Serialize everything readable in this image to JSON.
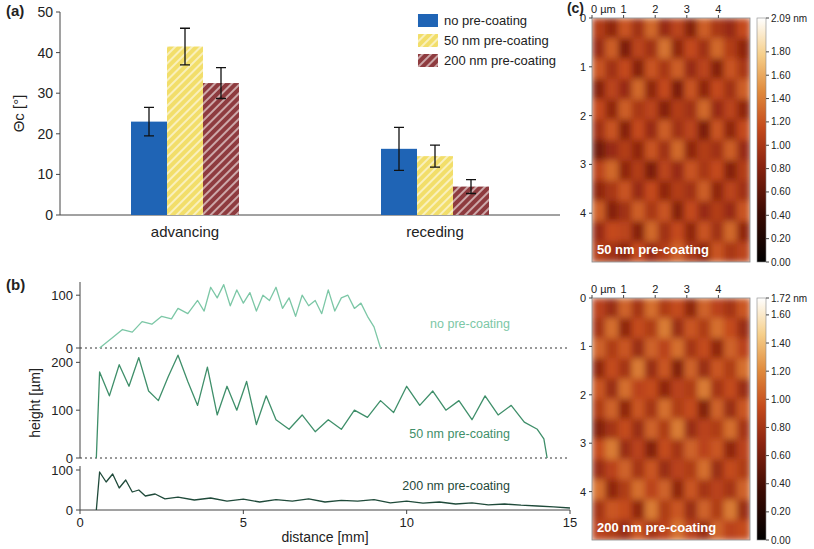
{
  "chart_data": [
    {
      "type": "bar",
      "title": "(a)",
      "y_label": "Θc [°]",
      "categories": [
        "advancing",
        "receding"
      ],
      "series": [
        {
          "name": "no pre-coating",
          "color": "#1f64b5",
          "values": [
            23,
            16.3
          ],
          "errors": [
            3.5,
            5.3
          ]
        },
        {
          "name": "50 nm pre-coating",
          "color": "#f2de6a",
          "values": [
            41.5,
            14.5
          ],
          "errors": [
            4.5,
            2.7
          ]
        },
        {
          "name": "200 nm pre-coating",
          "color": "#8e3b3f",
          "values": [
            32.5,
            7
          ],
          "errors": [
            3.8,
            1.7
          ]
        }
      ],
      "ylim": [
        0,
        50
      ],
      "yticks": [
        0,
        10,
        20,
        30,
        40,
        50
      ],
      "legend": "upper right",
      "grid": false
    },
    {
      "type": "line",
      "title": "(b)",
      "x": [
        0.6,
        0.8,
        1.0,
        1.3,
        1.6,
        1.9,
        2.2,
        2.5,
        2.8,
        3.0,
        3.3,
        3.6,
        3.8,
        4.0,
        4.2,
        4.4,
        4.6,
        4.8,
        5.0,
        5.2,
        5.4,
        5.6,
        5.8,
        6.0,
        6.2,
        6.4,
        6.6,
        6.8,
        7.0,
        7.2,
        7.4,
        7.6,
        7.8,
        8.0,
        8.2,
        8.4,
        8.6,
        8.8,
        9.0,
        9.2
      ],
      "series": [
        {
          "name": "no pre-coating",
          "color": "#7cc7a6",
          "values": [
            0,
            10,
            20,
            35,
            30,
            50,
            45,
            60,
            55,
            75,
            65,
            90,
            70,
            115,
            95,
            120,
            80,
            110,
            85,
            105,
            70,
            100,
            90,
            115,
            75,
            95,
            60,
            100,
            80,
            90,
            65,
            110,
            70,
            95,
            100,
            75,
            85,
            60,
            40,
            0
          ]
        }
      ],
      "xlim": [
        0,
        15
      ],
      "ylim": [
        0,
        125
      ],
      "yticks": [
        0,
        100
      ],
      "tick_labels": "y",
      "legend": "lower right",
      "grid": false
    },
    {
      "type": "line",
      "y_label": "height [µm]",
      "x": [
        0.5,
        0.6,
        0.9,
        1.2,
        1.5,
        1.8,
        2.1,
        2.4,
        2.7,
        3.0,
        3.3,
        3.6,
        3.9,
        4.2,
        4.5,
        4.8,
        5.1,
        5.4,
        5.7,
        6.0,
        6.4,
        6.8,
        7.2,
        7.6,
        8.0,
        8.4,
        8.8,
        9.2,
        9.6,
        10.0,
        10.4,
        10.8,
        11.2,
        11.6,
        12.0,
        12.4,
        12.8,
        13.2,
        13.6,
        14.0,
        14.2,
        14.3
      ],
      "series": [
        {
          "name": "50 nm pre-coating",
          "color": "#3f8f6a",
          "values": [
            0,
            180,
            130,
            195,
            150,
            210,
            140,
            120,
            170,
            215,
            160,
            110,
            190,
            90,
            150,
            100,
            160,
            70,
            130,
            80,
            60,
            90,
            55,
            80,
            60,
            100,
            85,
            120,
            95,
            150,
            110,
            140,
            100,
            120,
            80,
            130,
            90,
            110,
            75,
            60,
            40,
            0
          ]
        }
      ],
      "xlim": [
        0,
        15
      ],
      "ylim": [
        0,
        230
      ],
      "yticks": [
        0,
        100,
        200
      ],
      "tick_labels": "y",
      "legend": "lower right",
      "grid": false
    },
    {
      "type": "line",
      "x_label": "distance [mm]",
      "x": [
        0.5,
        0.6,
        0.8,
        1.0,
        1.2,
        1.4,
        1.6,
        1.8,
        2.0,
        2.3,
        2.6,
        3.0,
        3.5,
        4.0,
        4.5,
        5.0,
        5.5,
        6.0,
        6.5,
        7.0,
        7.5,
        8.0,
        8.5,
        9.0,
        9.5,
        10.0,
        10.5,
        11.0,
        11.5,
        12.0,
        12.5,
        13.0,
        13.5,
        14.0,
        14.5,
        15.0
      ],
      "series": [
        {
          "name": "200 nm pre-coating",
          "color": "#1f4a3a",
          "values": [
            0,
            95,
            70,
            90,
            55,
            75,
            45,
            50,
            35,
            40,
            28,
            32,
            25,
            30,
            22,
            27,
            20,
            26,
            22,
            28,
            20,
            24,
            22,
            26,
            18,
            22,
            17,
            20,
            15,
            18,
            13,
            15,
            12,
            10,
            8,
            5
          ]
        }
      ],
      "xlim": [
        0,
        15
      ],
      "ylim": [
        0,
        110
      ],
      "xticks": [
        0,
        5,
        10,
        15
      ],
      "yticks": [
        0,
        100
      ],
      "legend": "lower right",
      "grid": false
    },
    {
      "type": "heatmap",
      "title": "(c)",
      "annotation": "50 nm pre-coating",
      "xlim": [
        0,
        5
      ],
      "ylim": [
        0,
        5
      ],
      "xticks": [
        {
          "value": 0,
          "label": "0 µm"
        },
        1,
        2,
        3,
        4
      ],
      "yticks": [
        0,
        1,
        2,
        3,
        4
      ],
      "cells": [
        [
          1.05,
          0.85,
          1.2,
          0.95,
          1.3,
          0.9,
          1.1,
          0.8,
          1.25,
          1.0,
          0.9,
          1.15
        ],
        [
          0.9,
          1.25,
          0.75,
          1.1,
          0.95,
          1.35,
          0.85,
          1.15,
          0.95,
          1.3,
          1.05,
          0.85
        ],
        [
          1.2,
          0.95,
          1.15,
          0.8,
          1.2,
          1.0,
          1.25,
          0.9,
          1.1,
          0.8,
          1.2,
          1.0
        ],
        [
          0.8,
          1.1,
          0.9,
          1.3,
          0.85,
          1.15,
          0.75,
          1.2,
          0.85,
          1.15,
          0.95,
          1.25
        ],
        [
          1.15,
          0.85,
          1.25,
          1.0,
          1.1,
          0.8,
          1.05,
          0.95,
          1.3,
          0.9,
          1.1,
          0.85
        ],
        [
          0.95,
          1.2,
          0.8,
          1.15,
          0.9,
          1.25,
          0.95,
          1.1,
          0.75,
          1.2,
          0.85,
          1.15
        ],
        [
          0.7,
          0.9,
          1.05,
          0.85,
          1.2,
          0.95,
          1.3,
          0.85,
          1.05,
          0.95,
          1.25,
          0.9
        ],
        [
          1.1,
          1.3,
          0.85,
          1.05,
          0.75,
          1.1,
          0.9,
          1.2,
          1.0,
          1.15,
          0.8,
          1.05
        ],
        [
          0.85,
          1.0,
          1.2,
          0.9,
          1.15,
          0.85,
          1.05,
          0.95,
          1.25,
          0.85,
          1.1,
          0.95
        ],
        [
          1.25,
          0.8,
          0.95,
          1.25,
          1.0,
          1.2,
          0.8,
          1.15,
          0.9,
          1.05,
          0.9,
          1.2
        ],
        [
          0.9,
          1.15,
          1.1,
          0.8,
          1.3,
          0.95,
          1.15,
          0.85,
          1.2,
          0.95,
          1.3,
          0.85
        ],
        [
          1.05,
          0.95,
          0.85,
          1.15,
          0.9,
          1.05,
          1.25,
          1.0,
          0.85,
          1.2,
          1.0,
          1.1
        ]
      ],
      "color_range": [
        0,
        2.09
      ],
      "color_ticks": [
        {
          "value": 0,
          "label": "0.00"
        },
        {
          "value": 0.2,
          "label": "0.20"
        },
        {
          "value": 0.4,
          "label": "0.40"
        },
        {
          "value": 0.6,
          "label": "0.60"
        },
        {
          "value": 0.8,
          "label": "0.80"
        },
        {
          "value": 1,
          "label": "1.00"
        },
        {
          "value": 1.2,
          "label": "1.20"
        },
        {
          "value": 1.4,
          "label": "1.40"
        },
        {
          "value": 1.6,
          "label": "1.60"
        },
        {
          "value": 1.8,
          "label": "1.80"
        },
        {
          "value": 2.09,
          "label": "2.09 nm"
        }
      ]
    },
    {
      "type": "heatmap",
      "annotation": "200 nm pre-coating",
      "xlim": [
        0,
        5
      ],
      "ylim": [
        0,
        5
      ],
      "xticks": [
        {
          "value": 0,
          "label": "0 µm"
        },
        1,
        2,
        3,
        4
      ],
      "yticks": [
        0,
        1,
        2,
        3,
        4
      ],
      "cells": [
        [
          0.9,
          0.75,
          1.05,
          0.8,
          1.1,
          0.85,
          0.95,
          0.7,
          1.05,
          0.9,
          0.8,
          1.0
        ],
        [
          0.8,
          1.1,
          0.7,
          0.95,
          0.85,
          1.15,
          0.75,
          1.0,
          0.85,
          1.1,
          0.95,
          0.75
        ],
        [
          1.05,
          0.85,
          1.0,
          0.75,
          1.05,
          0.9,
          1.1,
          0.8,
          0.95,
          0.7,
          1.05,
          0.9
        ],
        [
          0.7,
          0.95,
          0.8,
          1.15,
          0.75,
          1.0,
          0.65,
          1.05,
          0.75,
          1.0,
          0.85,
          1.1
        ],
        [
          1.0,
          0.75,
          1.1,
          0.9,
          0.95,
          0.7,
          0.9,
          0.85,
          1.15,
          0.8,
          0.95,
          0.75
        ],
        [
          0.85,
          1.05,
          0.7,
          1.0,
          0.8,
          1.1,
          0.85,
          0.95,
          0.65,
          1.05,
          0.75,
          1.0
        ],
        [
          0.65,
          0.8,
          0.95,
          0.75,
          1.05,
          0.85,
          1.15,
          0.75,
          0.9,
          0.85,
          1.1,
          0.8
        ],
        [
          0.95,
          1.15,
          0.75,
          0.9,
          0.65,
          0.95,
          0.8,
          1.05,
          0.9,
          1.0,
          0.7,
          0.9
        ],
        [
          0.75,
          0.9,
          1.05,
          0.8,
          1.0,
          0.75,
          0.9,
          0.85,
          1.1,
          0.75,
          0.95,
          0.85
        ],
        [
          1.1,
          0.7,
          0.85,
          1.1,
          0.9,
          1.05,
          0.7,
          1.0,
          0.8,
          0.9,
          0.8,
          1.05
        ],
        [
          0.8,
          1.0,
          0.95,
          0.7,
          1.15,
          0.85,
          1.0,
          0.75,
          1.05,
          0.85,
          1.15,
          0.75
        ],
        [
          0.9,
          0.85,
          0.75,
          1.0,
          0.8,
          0.9,
          1.1,
          0.9,
          0.75,
          1.05,
          0.9,
          0.95
        ]
      ],
      "color_range": [
        0,
        1.72
      ],
      "color_ticks": [
        {
          "value": 0,
          "label": "0.00"
        },
        {
          "value": 0.2,
          "label": "0.20"
        },
        {
          "value": 0.4,
          "label": "0.40"
        },
        {
          "value": 0.6,
          "label": "0.60"
        },
        {
          "value": 0.8,
          "label": "0.80"
        },
        {
          "value": 1,
          "label": "1.00"
        },
        {
          "value": 1.2,
          "label": "1.20"
        },
        {
          "value": 1.4,
          "label": "1.40"
        },
        {
          "value": 1.6,
          "label": "1.60"
        },
        {
          "value": 1.72,
          "label": "1.72 nm"
        }
      ]
    }
  ]
}
